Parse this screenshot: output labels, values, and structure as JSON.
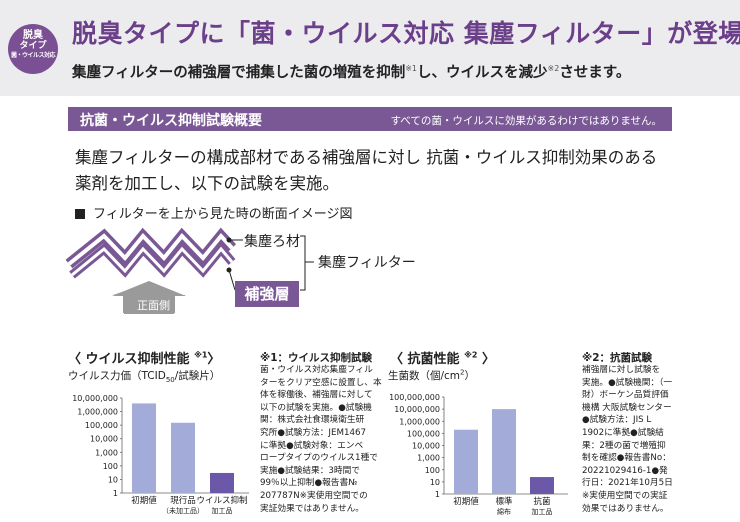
{
  "header": {
    "badge": [
      "脱臭",
      "タイプ",
      "菌・ウイルス対応"
    ],
    "headline": "脱臭タイプに「菌・ウイルス対応 集塵フィルター」が登場！",
    "subline": {
      "part1": "集塵フィルターの補強層で捕集した菌の増殖を抑制",
      "note1": "※1",
      "part2": "し、ウイルスを減少",
      "note2": "※2",
      "part3": "させます。"
    }
  },
  "section": {
    "title": "抗菌・ウイルス抑制試験概要",
    "notice": "すべての菌・ウイルスに効果があるわけではありません。"
  },
  "description": [
    "集塵フィルターの構成部材である補強層に対し 抗菌・ウイルス抑制効果のある",
    "薬剤を加工し、以下の試験を実施。"
  ],
  "image_section": {
    "title": "フィルターを上から見た時の断面イメージ図",
    "label_dust": "集塵ろ材",
    "label_reinforce": "補強層",
    "label_filter": "集塵フィルター",
    "label_front": "正面側"
  },
  "colors": {
    "purple": "#7a5896",
    "bar": "#a3acd8",
    "bar_low": "#6b58a8",
    "arrow": "#9a9a9a"
  },
  "chart_data": [
    {
      "type": "bar",
      "title": "〈 ウイルス抑制性能",
      "title_note": "※1",
      "title_close": "〉",
      "unit_prefix": "ウイルス力価（TCID",
      "unit_sub": "50",
      "unit_suffix": "/試験片）",
      "scale": "log",
      "ylim": [
        1,
        10000000
      ],
      "yticks": [
        "10,000,000",
        "1,000,000",
        "100,000",
        "10,000",
        "1,000",
        "100",
        "10",
        "1"
      ],
      "categories": [
        [
          "初期値"
        ],
        [
          "現行品",
          "（未加工品）"
        ],
        [
          "ウイルス抑制",
          "加工品"
        ]
      ],
      "values": [
        4000000,
        150000,
        30
      ]
    },
    {
      "type": "bar",
      "title": "〈 抗菌性能",
      "title_note": "※2",
      "title_close": "〉",
      "unit_prefix": "生菌数（個/cm",
      "unit_sup": "2",
      "unit_suffix": "）",
      "scale": "log",
      "ylim": [
        1,
        100000000
      ],
      "yticks": [
        "100,000,000",
        "10,000,000",
        "1,000,000",
        "100,000",
        "10,000",
        "1,000",
        "100",
        "10",
        "1"
      ],
      "categories": [
        [
          "初期値"
        ],
        [
          "標準",
          "綿布"
        ],
        [
          "抗菌",
          "加工品"
        ]
      ],
      "values": [
        200000,
        10000000,
        25
      ]
    }
  ],
  "notes": [
    {
      "title": "※1：ウイルス抑制試験",
      "lines": [
        "菌・ウイルス対応集塵フィル",
        "ターをクリア空感に設置し、本",
        "体を稼働後、補強層に対して",
        "以下の試験を実施。●試験機",
        "関：株式会社食環境衛生研",
        "究所●試験方法：JEM1467",
        "に準拠●試験対象：エンベ",
        "ロープタイプのウイルス1種で",
        "実施●試験結果：3時間で",
        "99％以上抑制●報告書№",
        "207787N※実使用空間での",
        "実証効果ではありません。"
      ]
    },
    {
      "title": "※2：抗菌試験",
      "lines": [
        "補強層に対し試験を",
        "実施。●試験機関：（一",
        "財）ボーケン品質評価",
        "機構 大阪試験センター",
        "●試験方法：JIS L",
        "1902に準拠●試験結",
        "果：2種の菌で増殖抑",
        "制を確認●報告書No：",
        "20221029416-1●発",
        "行日：2021年10月5日",
        "※実使用空間での実証",
        "効果ではありません。"
      ]
    }
  ]
}
